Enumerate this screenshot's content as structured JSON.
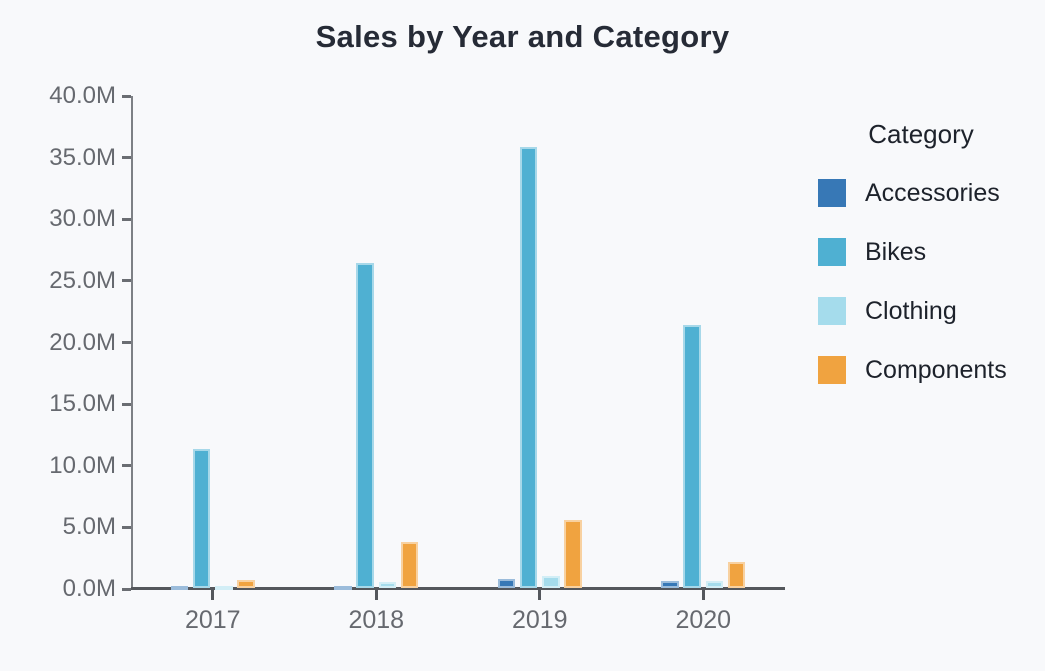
{
  "title": "Sales by Year and Category",
  "legend": {
    "title": "Category",
    "items": [
      {
        "label": "Accessories",
        "color": "#3778b6"
      },
      {
        "label": "Bikes",
        "color": "#4fb0d2"
      },
      {
        "label": "Clothing",
        "color": "#a5dcec"
      },
      {
        "label": "Components",
        "color": "#f0a340"
      }
    ]
  },
  "chart_data": {
    "type": "bar",
    "title": "Sales by Year and Category",
    "categories": [
      "2017",
      "2018",
      "2019",
      "2020"
    ],
    "series": [
      {
        "name": "Accessories",
        "color": "#3778b6",
        "values": [
          0.05,
          0.15,
          0.75,
          0.55
        ]
      },
      {
        "name": "Bikes",
        "color": "#4fb0d2",
        "values": [
          11.3,
          26.4,
          35.8,
          21.3
        ]
      },
      {
        "name": "Clothing",
        "color": "#a5dcec",
        "values": [
          0.05,
          0.5,
          1.0,
          0.6
        ]
      },
      {
        "name": "Components",
        "color": "#f0a340",
        "values": [
          0.65,
          3.7,
          5.5,
          2.1
        ]
      }
    ],
    "xlabel": "",
    "ylabel": "",
    "unit": "M",
    "ylim": [
      0,
      40
    ],
    "ytick_step": 5,
    "ytick_labels": [
      "0.0M",
      "5.0M",
      "10.0M",
      "15.0M",
      "20.0M",
      "25.0M",
      "30.0M",
      "35.0M",
      "40.0M"
    ],
    "grid": false,
    "legend_position": "right",
    "legend_title": "Category",
    "background": "#f8f9fb"
  }
}
